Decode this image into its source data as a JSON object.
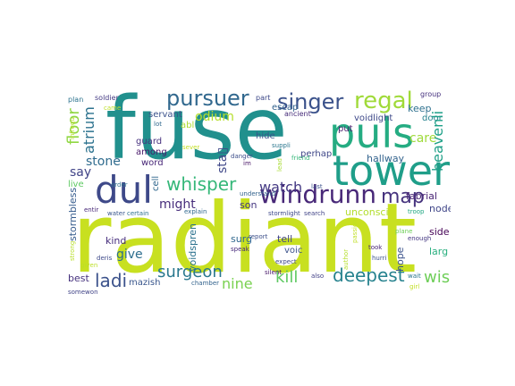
{
  "words": {
    "radiant": {
      "text": "radiant",
      "color": "#c8e020"
    },
    "fuse": {
      "text": "fuse",
      "color": "#21908d"
    },
    "puls": {
      "text": "puls",
      "color": "#25ac82"
    },
    "tower": {
      "text": "tower",
      "color": "#1f9e89"
    },
    "dul": {
      "text": "dul",
      "color": "#3e4989"
    },
    "windrunn": {
      "text": "windrunn",
      "color": "#482878"
    },
    "pursuer": {
      "text": "pursuer",
      "color": "#31688e"
    },
    "singer": {
      "text": "singer",
      "color": "#3b528b"
    },
    "regal": {
      "text": "regal",
      "color": "#a0da39"
    },
    "whisper": {
      "text": "whisper",
      "color": "#35b779"
    },
    "watch": {
      "text": "watch",
      "color": "#443983"
    },
    "map": {
      "text": "map",
      "color": "#46337e"
    },
    "deepest": {
      "text": "deepest",
      "color": "#26828e"
    },
    "surgeon": {
      "text": "surgeon",
      "color": "#2a788e"
    },
    "ladi": {
      "text": "ladi",
      "color": "#3b528b"
    },
    "kill": {
      "text": "kill",
      "color": "#5ec962"
    },
    "wish": {
      "text": "wish",
      "color": "#6ece58"
    },
    "nine": {
      "text": "nine",
      "color": "#7ad151"
    },
    "floor": {
      "text": "floor",
      "color": "#90d743"
    },
    "atrium": {
      "text": "atrium",
      "color": "#2c728e"
    },
    "odium": {
      "text": "odium",
      "color": "#b5de2b"
    },
    "stone": {
      "text": "stone",
      "color": "#2f6b8e"
    },
    "say": {
      "text": "say",
      "color": "#414487"
    },
    "give": {
      "text": "give",
      "color": "#2e6e8e"
    },
    "might": {
      "text": "might",
      "color": "#472d7b"
    },
    "sta": {
      "text": "sta▯",
      "color": "#3f4788"
    },
    "care": {
      "text": "care",
      "color": "#9fda3a"
    },
    "heavenli": {
      "text": "heavenli",
      "color": "#1fa088"
    },
    "keep": {
      "text": "keep",
      "color": "#2d708e"
    },
    "hallway": {
      "text": "hallway",
      "color": "#33638d"
    },
    "fabrial": {
      "text": "fabrial",
      "color": "#482374"
    },
    "node": {
      "text": "node",
      "color": "#404688"
    },
    "side": {
      "text": "side",
      "color": "#440154"
    },
    "larg": {
      "text": "larg",
      "color": "#29af7f"
    },
    "hope": {
      "text": "hope",
      "color": "#3b528b"
    },
    "unconsci": {
      "text": "unconsci",
      "color": "#b2dd2d"
    },
    "surg": {
      "text": "surg",
      "color": "#31688e"
    },
    "tell": {
      "text": "tell",
      "color": "#414487"
    },
    "son": {
      "text": "son",
      "color": "#453781"
    },
    "kind": {
      "text": "kind",
      "color": "#472f7d"
    },
    "voidspren": {
      "text": "voidspren",
      "color": "#2c728e"
    },
    "stormbless": {
      "text": "stormbless",
      "color": "#365c8d"
    },
    "best": {
      "text": "best",
      "color": "#46327e"
    },
    "mazish": {
      "text": "mazish",
      "color": "#39568c"
    },
    "servant": {
      "text": "servant",
      "color": "#3b518b"
    },
    "escap": {
      "text": "escap",
      "color": "#33638d"
    },
    "voidlight": {
      "text": "voidlight",
      "color": "#3e4989"
    },
    "door": {
      "text": "door",
      "color": "#26828e"
    },
    "put": {
      "text": "put",
      "color": "#481b6d"
    },
    "perhap": {
      "text": "perhap",
      "color": "#3f4788"
    },
    "hide": {
      "text": "hide",
      "color": "#3a548c"
    },
    "guard": {
      "text": "guard",
      "color": "#46307e"
    },
    "among": {
      "text": "among",
      "color": "#48186a"
    },
    "word": {
      "text": "word",
      "color": "#482677"
    },
    "abl": {
      "text": "abl",
      "color": "#addc30"
    },
    "live": {
      "text": "live",
      "color": "#5ec962"
    },
    "cell": {
      "text": "cell",
      "color": "#31688e"
    },
    "voic": {
      "text": "voic",
      "color": "#3b528b"
    },
    "plan": {
      "text": "plan",
      "color": "#2c728e"
    },
    "soldier": {
      "text": "soldier",
      "color": "#443a83"
    },
    "part": {
      "text": "part",
      "color": "#3e4989"
    },
    "ancient": {
      "text": "ancient",
      "color": "#472c7a"
    },
    "group": {
      "text": "group",
      "color": "#46327e"
    },
    "infrequent": {
      "text": "infrequ",
      "color": "#b8de29"
    },
    "lot": {
      "text": "lot",
      "color": "#31688e"
    },
    "order": {
      "text": "order",
      "color": "#2d708e"
    },
    "came": {
      "text": "came",
      "color": "#bddf26"
    },
    "sever": {
      "text": "sever",
      "color": "#c2df23"
    },
    "danger": {
      "text": "danger",
      "color": "#3d4e8a"
    },
    "im": {
      "text": "im",
      "color": "#471365"
    },
    "suppli": {
      "text": "suppli",
      "color": "#2a768e"
    },
    "friend": {
      "text": "friend",
      "color": "#35b779"
    },
    "last": {
      "text": "last",
      "color": "#3b518b"
    },
    "understand": {
      "text": "understand",
      "color": "#33638d"
    },
    "lead": {
      "text": "lead",
      "color": "#a8db34"
    },
    "explain": {
      "text": "explain",
      "color": "#31688e"
    },
    "stormlight": {
      "text": "stormlight",
      "color": "#3e4989"
    },
    "search": {
      "text": "search",
      "color": "#414487"
    },
    "certain": {
      "text": "certain",
      "color": "#2d708e"
    },
    "water": {
      "text": "water",
      "color": "#39568c"
    },
    "entir": {
      "text": "entir",
      "color": "#482878"
    },
    "troop": {
      "text": "troop",
      "color": "#22a884"
    },
    "passion": {
      "text": "passion",
      "color": "#c0df25"
    },
    "plane": {
      "text": "plane",
      "color": "#6ece58"
    },
    "enough": {
      "text": "enough",
      "color": "#453882"
    },
    "took": {
      "text": "took",
      "color": "#482576"
    },
    "report": {
      "text": "report",
      "color": "#3c4f8a"
    },
    "speak": {
      "text": "speak",
      "color": "#472a7a"
    },
    "expect": {
      "text": "expect",
      "color": "#3f4889"
    },
    "author": {
      "text": "author",
      "color": "#b5de2b"
    },
    "hurri": {
      "text": "hurri",
      "color": "#3b528b"
    },
    "silent": {
      "text": "silent",
      "color": "#48186a"
    },
    "also": {
      "text": "also",
      "color": "#424086"
    },
    "wait": {
      "text": "wait",
      "color": "#2a768e"
    },
    "girl": {
      "text": "girl",
      "color": "#c2df23"
    },
    "chamber": {
      "text": "chamber",
      "color": "#33638d"
    },
    "given": {
      "text": "given",
      "color": "#bddf26"
    },
    "deris": {
      "text": "deris",
      "color": "#3e4989"
    },
    "somewon": {
      "text": "somewon",
      "color": "#414487"
    },
    "strong": {
      "text": "strong",
      "color": "#b8de29"
    }
  }
}
